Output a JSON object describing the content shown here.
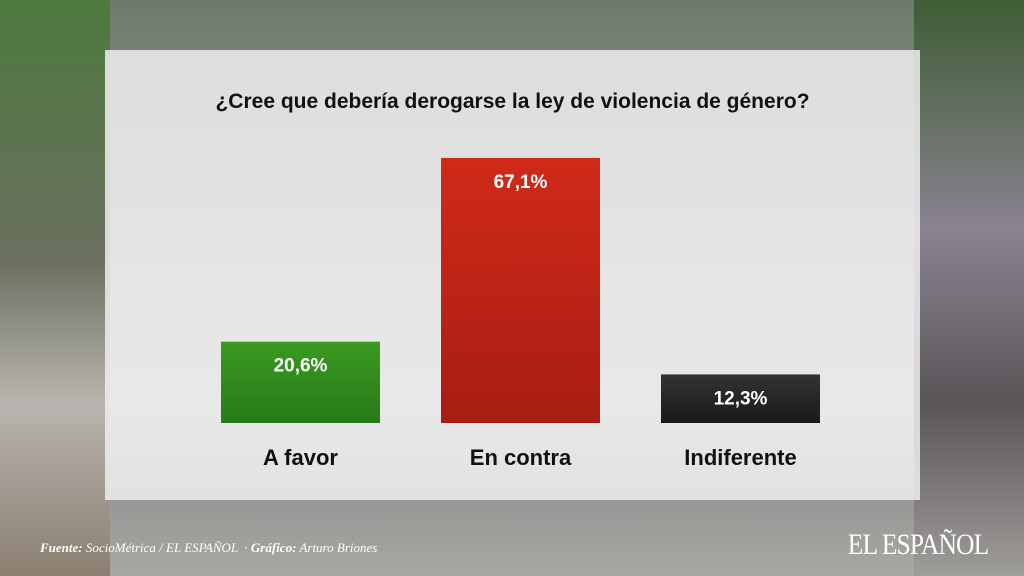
{
  "chart_data": {
    "type": "bar",
    "title": "¿Cree que debería derogarse la ley de violencia de género?",
    "categories": [
      "A favor",
      "En contra",
      "Indiferente"
    ],
    "values": [
      20.6,
      67.1,
      12.3
    ],
    "value_labels": [
      "20,6%",
      "67,1%",
      "12,3%"
    ],
    "colors": [
      "#2e8a1c",
      "#c4261a",
      "#222222"
    ],
    "unit": "%",
    "grid": false
  },
  "footer": {
    "source_label": "Fuente:",
    "source": "SocioMétrica / EL ESPAÑOL",
    "sep": "·",
    "credit_label": "Gráfico:",
    "credit": "Arturo Briones"
  },
  "logo": "EL ESPAÑOL"
}
